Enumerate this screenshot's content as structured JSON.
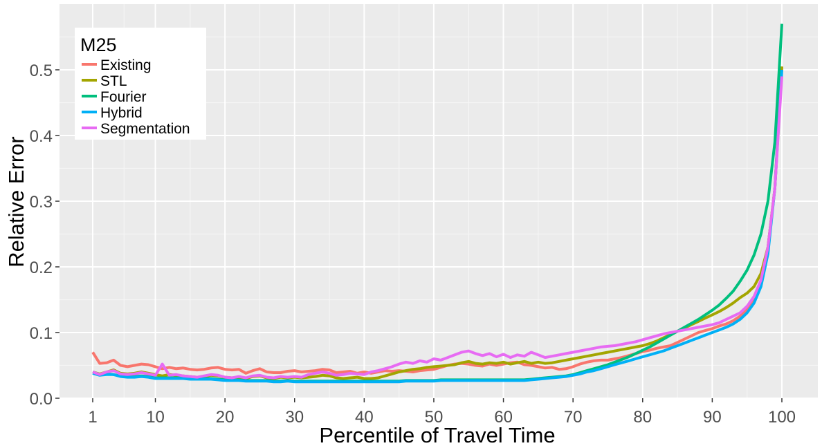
{
  "chart_data": {
    "type": "line",
    "xlabel": "Percentile of Travel Time",
    "ylabel": "Relative Error",
    "xlim": [
      1,
      100
    ],
    "ylim": [
      0,
      0.57
    ],
    "x_ticks": [
      1,
      10,
      20,
      30,
      40,
      50,
      60,
      70,
      80,
      90,
      100
    ],
    "x_tick_labels": [
      "1",
      "10",
      "20",
      "30",
      "40",
      "50",
      "60",
      "70",
      "80",
      "90",
      "100"
    ],
    "y_ticks": [
      0,
      0.1,
      0.2,
      0.3,
      0.4,
      0.5
    ],
    "y_tick_labels": [
      "0.0",
      "0.1",
      "0.2",
      "0.3",
      "0.4",
      "0.5"
    ],
    "grid": true,
    "legend": {
      "title": "M25",
      "position": "top-left"
    },
    "x": [
      1,
      2,
      3,
      4,
      5,
      6,
      7,
      8,
      9,
      10,
      11,
      12,
      13,
      14,
      15,
      16,
      17,
      18,
      19,
      20,
      21,
      22,
      23,
      24,
      25,
      26,
      27,
      28,
      29,
      30,
      31,
      32,
      33,
      34,
      35,
      36,
      37,
      38,
      39,
      40,
      41,
      42,
      43,
      44,
      45,
      46,
      47,
      48,
      49,
      50,
      51,
      52,
      53,
      54,
      55,
      56,
      57,
      58,
      59,
      60,
      61,
      62,
      63,
      64,
      65,
      66,
      67,
      68,
      69,
      70,
      71,
      72,
      73,
      74,
      75,
      76,
      77,
      78,
      79,
      80,
      81,
      82,
      83,
      84,
      85,
      86,
      87,
      88,
      89,
      90,
      91,
      92,
      93,
      94,
      95,
      96,
      97,
      98,
      99,
      100
    ],
    "series": [
      {
        "name": "Existing",
        "color": "#F8766D",
        "values": [
          0.07,
          0.053,
          0.054,
          0.058,
          0.05,
          0.048,
          0.05,
          0.052,
          0.051,
          0.048,
          0.045,
          0.047,
          0.045,
          0.046,
          0.044,
          0.043,
          0.044,
          0.046,
          0.047,
          0.044,
          0.043,
          0.044,
          0.038,
          0.042,
          0.045,
          0.04,
          0.039,
          0.039,
          0.041,
          0.042,
          0.04,
          0.041,
          0.042,
          0.044,
          0.043,
          0.039,
          0.04,
          0.041,
          0.038,
          0.04,
          0.038,
          0.04,
          0.042,
          0.041,
          0.042,
          0.041,
          0.04,
          0.042,
          0.043,
          0.044,
          0.047,
          0.05,
          0.052,
          0.053,
          0.052,
          0.05,
          0.049,
          0.052,
          0.05,
          0.052,
          0.054,
          0.055,
          0.051,
          0.05,
          0.048,
          0.046,
          0.047,
          0.044,
          0.045,
          0.048,
          0.052,
          0.055,
          0.057,
          0.058,
          0.058,
          0.06,
          0.062,
          0.065,
          0.068,
          0.071,
          0.073,
          0.076,
          0.078,
          0.08,
          0.085,
          0.09,
          0.095,
          0.1,
          0.103,
          0.106,
          0.11,
          0.113,
          0.118,
          0.125,
          0.135,
          0.15,
          0.18,
          0.23,
          0.32,
          0.505
        ]
      },
      {
        "name": "STL",
        "color": "#A3A500",
        "values": [
          0.04,
          0.037,
          0.04,
          0.043,
          0.038,
          0.037,
          0.038,
          0.04,
          0.038,
          0.036,
          0.034,
          0.036,
          0.035,
          0.034,
          0.033,
          0.032,
          0.033,
          0.035,
          0.034,
          0.032,
          0.031,
          0.032,
          0.03,
          0.033,
          0.034,
          0.031,
          0.03,
          0.032,
          0.031,
          0.032,
          0.031,
          0.032,
          0.033,
          0.035,
          0.034,
          0.031,
          0.03,
          0.031,
          0.032,
          0.03,
          0.03,
          0.031,
          0.034,
          0.037,
          0.04,
          0.042,
          0.044,
          0.045,
          0.047,
          0.048,
          0.049,
          0.05,
          0.051,
          0.054,
          0.056,
          0.053,
          0.052,
          0.054,
          0.053,
          0.055,
          0.052,
          0.054,
          0.056,
          0.053,
          0.055,
          0.053,
          0.054,
          0.056,
          0.058,
          0.06,
          0.062,
          0.064,
          0.066,
          0.068,
          0.07,
          0.072,
          0.074,
          0.076,
          0.078,
          0.08,
          0.083,
          0.087,
          0.092,
          0.097,
          0.102,
          0.107,
          0.112,
          0.117,
          0.122,
          0.127,
          0.132,
          0.138,
          0.145,
          0.153,
          0.16,
          0.17,
          0.19,
          0.23,
          0.32,
          0.505
        ]
      },
      {
        "name": "Fourier",
        "color": "#00BF7D",
        "values": [
          0.04,
          0.036,
          0.037,
          0.036,
          0.034,
          0.033,
          0.033,
          0.034,
          0.033,
          0.031,
          0.031,
          0.031,
          0.031,
          0.031,
          0.03,
          0.03,
          0.03,
          0.03,
          0.029,
          0.028,
          0.028,
          0.028,
          0.027,
          0.027,
          0.027,
          0.027,
          0.026,
          0.026,
          0.027,
          0.026,
          0.026,
          0.026,
          0.026,
          0.026,
          0.026,
          0.026,
          0.026,
          0.026,
          0.026,
          0.026,
          0.026,
          0.026,
          0.026,
          0.026,
          0.026,
          0.027,
          0.027,
          0.027,
          0.027,
          0.027,
          0.028,
          0.028,
          0.028,
          0.028,
          0.028,
          0.028,
          0.028,
          0.028,
          0.028,
          0.028,
          0.028,
          0.028,
          0.028,
          0.029,
          0.03,
          0.031,
          0.032,
          0.033,
          0.034,
          0.036,
          0.039,
          0.042,
          0.045,
          0.048,
          0.051,
          0.055,
          0.059,
          0.063,
          0.068,
          0.073,
          0.078,
          0.084,
          0.09,
          0.096,
          0.102,
          0.108,
          0.114,
          0.12,
          0.127,
          0.134,
          0.142,
          0.152,
          0.163,
          0.178,
          0.195,
          0.218,
          0.25,
          0.3,
          0.39,
          0.57
        ]
      },
      {
        "name": "Hybrid",
        "color": "#00B0F6",
        "values": [
          0.038,
          0.035,
          0.036,
          0.036,
          0.033,
          0.032,
          0.032,
          0.033,
          0.032,
          0.03,
          0.03,
          0.03,
          0.03,
          0.03,
          0.029,
          0.029,
          0.029,
          0.029,
          0.028,
          0.027,
          0.027,
          0.027,
          0.026,
          0.026,
          0.026,
          0.026,
          0.025,
          0.025,
          0.026,
          0.025,
          0.025,
          0.025,
          0.025,
          0.025,
          0.025,
          0.025,
          0.025,
          0.025,
          0.025,
          0.025,
          0.025,
          0.025,
          0.025,
          0.025,
          0.025,
          0.026,
          0.026,
          0.026,
          0.026,
          0.026,
          0.027,
          0.027,
          0.027,
          0.027,
          0.027,
          0.027,
          0.027,
          0.027,
          0.027,
          0.027,
          0.027,
          0.027,
          0.027,
          0.028,
          0.029,
          0.03,
          0.031,
          0.032,
          0.033,
          0.035,
          0.037,
          0.04,
          0.042,
          0.045,
          0.048,
          0.051,
          0.054,
          0.057,
          0.06,
          0.063,
          0.066,
          0.069,
          0.072,
          0.076,
          0.08,
          0.084,
          0.088,
          0.092,
          0.096,
          0.1,
          0.104,
          0.108,
          0.113,
          0.12,
          0.13,
          0.145,
          0.17,
          0.22,
          0.32,
          0.5
        ]
      },
      {
        "name": "Segmentation",
        "color": "#E76BF3",
        "values": [
          0.04,
          0.036,
          0.04,
          0.042,
          0.037,
          0.036,
          0.037,
          0.039,
          0.037,
          0.035,
          0.052,
          0.035,
          0.036,
          0.034,
          0.033,
          0.032,
          0.034,
          0.036,
          0.035,
          0.032,
          0.031,
          0.033,
          0.031,
          0.034,
          0.035,
          0.032,
          0.031,
          0.033,
          0.032,
          0.033,
          0.032,
          0.036,
          0.038,
          0.04,
          0.038,
          0.035,
          0.036,
          0.038,
          0.037,
          0.036,
          0.04,
          0.042,
          0.045,
          0.048,
          0.052,
          0.055,
          0.053,
          0.057,
          0.055,
          0.06,
          0.058,
          0.062,
          0.066,
          0.07,
          0.072,
          0.068,
          0.065,
          0.068,
          0.063,
          0.067,
          0.062,
          0.066,
          0.064,
          0.07,
          0.066,
          0.062,
          0.064,
          0.066,
          0.068,
          0.07,
          0.072,
          0.074,
          0.076,
          0.078,
          0.079,
          0.08,
          0.082,
          0.084,
          0.086,
          0.089,
          0.092,
          0.095,
          0.098,
          0.1,
          0.102,
          0.104,
          0.106,
          0.108,
          0.11,
          0.112,
          0.115,
          0.12,
          0.125,
          0.13,
          0.14,
          0.155,
          0.18,
          0.23,
          0.32,
          0.49
        ]
      }
    ]
  }
}
